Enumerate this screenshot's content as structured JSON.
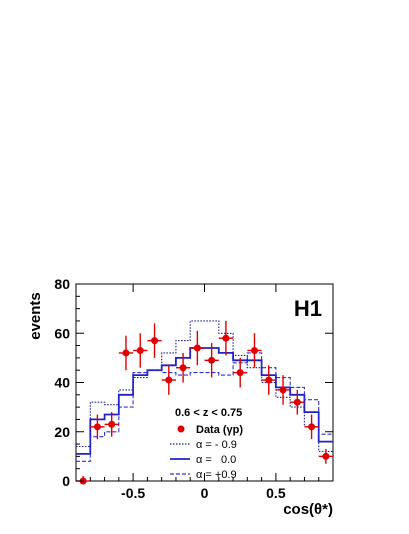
{
  "chart_data": {
    "type": "histogram",
    "experiment_label": "H1",
    "ylabel": "events",
    "xlabel": "cos(θ*)",
    "xlim": [
      -0.9,
      0.9
    ],
    "ylim": [
      0,
      80
    ],
    "x_ticks": [
      -0.5,
      0,
      0.5
    ],
    "x_tick_labels": [
      "-0.5",
      "0",
      "0.5"
    ],
    "y_ticks": [
      0,
      20,
      40,
      60,
      80
    ],
    "y_tick_labels": [
      "0",
      "20",
      "40",
      "60",
      "80"
    ],
    "legend_placement": "bottom-center",
    "cut_label": "0.6 < z < 0.75",
    "bin_edges": [
      -0.9,
      -0.8,
      -0.7,
      -0.6,
      -0.5,
      -0.4,
      -0.3,
      -0.2,
      -0.1,
      0.0,
      0.1,
      0.2,
      0.3,
      0.4,
      0.5,
      0.6,
      0.7,
      0.8,
      0.9
    ],
    "data": {
      "name": "Data (γp)",
      "color": "#e00000",
      "x": [
        -0.85,
        -0.75,
        -0.65,
        -0.55,
        -0.45,
        -0.35,
        -0.25,
        -0.15,
        -0.05,
        0.05,
        0.15,
        0.25,
        0.35,
        0.45,
        0.55,
        0.65,
        0.75,
        0.85
      ],
      "y": [
        0,
        22,
        23,
        52,
        53,
        57,
        41,
        46,
        54,
        49,
        58,
        44,
        53,
        41,
        37,
        32,
        22,
        10
      ],
      "err": [
        2,
        5,
        5,
        7,
        7,
        7,
        6,
        6,
        7,
        7,
        7,
        6,
        7,
        6,
        6,
        5,
        5,
        3
      ]
    },
    "series": [
      {
        "name": "α = - 0.9",
        "style": "dotted",
        "color": "#1a1aa0",
        "values": [
          14,
          32,
          31,
          37,
          42,
          45,
          52,
          57,
          65,
          65,
          60,
          51,
          46,
          40,
          34,
          30,
          22,
          12
        ]
      },
      {
        "name": "α =   0.0",
        "style": "solid",
        "color": "#2020c8",
        "values": [
          11,
          25,
          27,
          35,
          43,
          45,
          47,
          50,
          54,
          54,
          52,
          49,
          49,
          43,
          38,
          35,
          28,
          16
        ]
      },
      {
        "name": "α = +0.9",
        "style": "dashed",
        "color": "#3030d8",
        "values": [
          8,
          18,
          20,
          30,
          44,
          45,
          44,
          43,
          44,
          44,
          43,
          48,
          52,
          46,
          42,
          38,
          33,
          19
        ]
      }
    ]
  }
}
